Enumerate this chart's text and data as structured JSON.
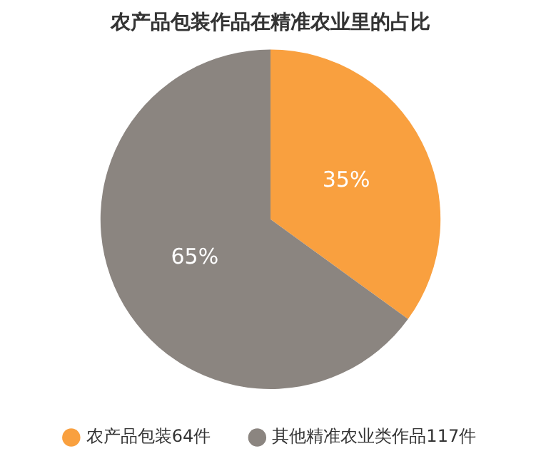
{
  "chart_data": {
    "type": "pie",
    "title": "农产品包装作品在精准农业里的占比",
    "categories": [
      "农产品包装64件",
      "其他精准农业类作品117件"
    ],
    "values": [
      35,
      65
    ],
    "colors": [
      "#f9a03f",
      "#8b8580"
    ],
    "value_labels": [
      "35%",
      "65%"
    ],
    "legend": "bottom"
  }
}
